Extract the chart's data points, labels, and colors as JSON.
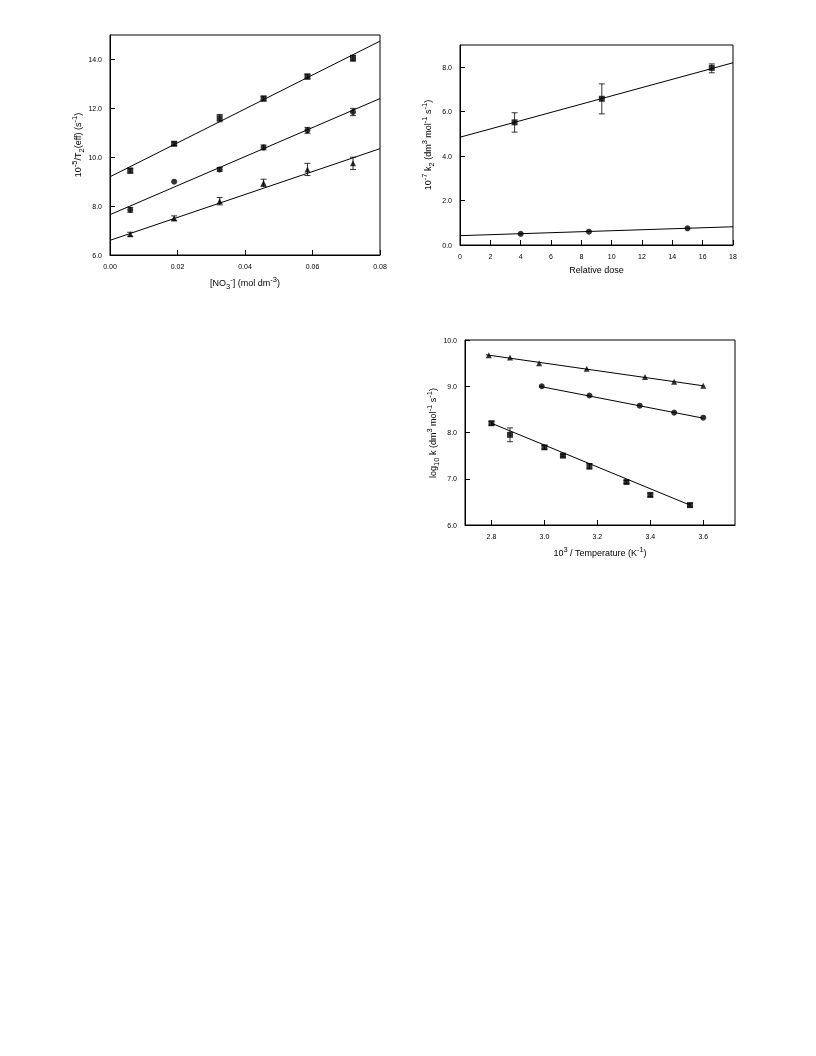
{
  "chart_data": [
    {
      "type": "scatter",
      "xlabel": "[NO$_{3}$$^{-}$] (mol dm$^{-3}$)",
      "ylabel": "10$^{-5}$/T$_{2}$(eff) (s$^{-1}$)",
      "xlim": [
        0,
        0.08
      ],
      "xticks": [
        {
          "value": 0,
          "label": "0.00"
        },
        {
          "value": 0.02,
          "label": "0.02"
        },
        {
          "value": 0.04,
          "label": "0.04"
        },
        {
          "value": 0.06,
          "label": "0.06"
        },
        {
          "value": 0.08,
          "label": "0.08"
        }
      ],
      "ylim": [
        6,
        15
      ],
      "yticks": [
        {
          "value": 6,
          "label": "6.0"
        },
        {
          "value": 8,
          "label": "8.0"
        },
        {
          "value": 10,
          "label": "10.0"
        },
        {
          "value": 12,
          "label": "12.0"
        },
        {
          "value": 14,
          "label": "14.0"
        }
      ],
      "grid": false,
      "series": [
        {
          "marker": "square",
          "color": "#000000",
          "x": [
            0.006,
            0.019,
            0.0325,
            0.0455,
            0.0585,
            0.072
          ],
          "values": [
            9.45,
            10.55,
            11.6,
            12.4,
            13.3,
            14.05
          ],
          "errors": [
            0.1,
            0.08,
            0.15,
            0.1,
            0.1,
            0.12
          ]
        },
        {
          "marker": "circle",
          "color": "#000000",
          "x": [
            0.006,
            0.019,
            0.0325,
            0.0455,
            0.0585,
            0.072
          ],
          "values": [
            7.85,
            9.0,
            9.5,
            10.4,
            11.1,
            11.85
          ],
          "errors": [
            0.1,
            null,
            0.08,
            0.1,
            0.12,
            0.15
          ]
        },
        {
          "marker": "triangle",
          "color": "#000000",
          "x": [
            0.006,
            0.019,
            0.0325,
            0.0455,
            0.0585,
            0.072
          ],
          "values": [
            6.85,
            7.5,
            8.2,
            8.95,
            9.5,
            9.75
          ],
          "errors": [
            0.08,
            0.1,
            0.15,
            0.15,
            0.25,
            0.25
          ]
        },
        {
          "type": "line",
          "marker": "none",
          "color": "#000000",
          "x": [
            0,
            0.08
          ],
          "values": [
            9.2,
            14.75
          ]
        },
        {
          "type": "line",
          "marker": "none",
          "color": "#000000",
          "x": [
            0,
            0.08
          ],
          "values": [
            7.65,
            12.4
          ]
        },
        {
          "type": "line",
          "marker": "none",
          "color": "#000000",
          "x": [
            0,
            0.08
          ],
          "values": [
            6.6,
            10.35
          ]
        }
      ]
    },
    {
      "type": "scatter",
      "xlabel": "Relative dose",
      "ylabel": "10$^{-7}$ k$_{2}$ (dm$^{3}$ mol$^{-1}$ s$^{-1}$)",
      "xlim": [
        0,
        18
      ],
      "xticks": [
        0,
        2,
        4,
        6,
        8,
        10,
        12,
        14,
        16,
        18
      ],
      "ylim": [
        0,
        9
      ],
      "yticks": [
        {
          "value": 0,
          "label": "0.0"
        },
        {
          "value": 2,
          "label": "2.0"
        },
        {
          "value": 4,
          "label": "4.0"
        },
        {
          "value": 6,
          "label": "6.0"
        },
        {
          "value": 8,
          "label": "8.0"
        }
      ],
      "grid": false,
      "series": [
        {
          "marker": "square",
          "color": "#000000",
          "x": [
            3.6,
            9.35,
            16.6
          ],
          "values": [
            5.52,
            6.58,
            7.97
          ],
          "errors": [
            [
              5.08,
              5.95
            ],
            [
              5.9,
              7.25
            ],
            [
              7.75,
              8.15
            ]
          ]
        },
        {
          "marker": "circle",
          "color": "#000000",
          "x": [
            4.0,
            8.5,
            15.0
          ],
          "values": [
            0.5,
            0.6,
            0.75
          ]
        },
        {
          "type": "line",
          "marker": "none",
          "color": "#000000",
          "x": [
            0,
            18
          ],
          "values": [
            4.85,
            8.2
          ]
        },
        {
          "type": "line",
          "marker": "none",
          "color": "#000000",
          "x": [
            0,
            18
          ],
          "values": [
            0.42,
            0.82
          ]
        }
      ]
    },
    {
      "type": "scatter",
      "xlabel": "10$^{3}$ / Temperature (K$^{-1}$)",
      "ylabel": "log$_{10}$ k (dm$^{3}$ mol$^{-1}$ s$^{-1}$)",
      "xlim": [
        2.7,
        3.72
      ],
      "xticks": [
        {
          "value": 2.8,
          "label": "2.8"
        },
        {
          "value": 3.0,
          "label": "3.0"
        },
        {
          "value": 3.2,
          "label": "3.2"
        },
        {
          "value": 3.4,
          "label": "3.4"
        },
        {
          "value": 3.6,
          "label": "3.6"
        }
      ],
      "ylim": [
        6,
        10
      ],
      "yticks": [
        {
          "value": 6,
          "label": "6.0"
        },
        {
          "value": 7,
          "label": "7.0"
        },
        {
          "value": 8,
          "label": "8.0"
        },
        {
          "value": 9,
          "label": "9.0"
        },
        {
          "value": 10,
          "label": "10.0"
        }
      ],
      "grid": false,
      "series": [
        {
          "marker": "triangle",
          "color": "#000000",
          "x": [
            2.79,
            2.87,
            2.98,
            3.16,
            3.38,
            3.49,
            3.6
          ],
          "values": [
            9.67,
            9.62,
            9.5,
            9.38,
            9.2,
            9.1,
            9.01
          ]
        },
        {
          "marker": "circle",
          "color": "#000000",
          "x": [
            2.99,
            3.17,
            3.36,
            3.49,
            3.6
          ],
          "values": [
            9.0,
            8.8,
            8.58,
            8.43,
            8.32
          ]
        },
        {
          "marker": "square",
          "color": "#000000",
          "x": [
            2.8,
            2.87,
            3.0,
            3.07,
            3.17,
            3.31,
            3.4,
            3.55
          ],
          "values": [
            8.2,
            7.95,
            7.68,
            7.5,
            7.27,
            6.93,
            6.65,
            6.43
          ],
          "errors": [
            0.04,
            0.15,
            0.04,
            0.03,
            0.06,
            0.03,
            0.04,
            0.04
          ]
        },
        {
          "type": "line",
          "marker": "none",
          "color": "#000000",
          "x": [
            2.78,
            3.6
          ],
          "values": [
            9.68,
            9.01
          ]
        },
        {
          "type": "line",
          "marker": "none",
          "color": "#000000",
          "x": [
            2.98,
            3.6
          ],
          "values": [
            9.0,
            8.31
          ]
        },
        {
          "type": "line",
          "marker": "none",
          "color": "#000000",
          "x": [
            2.8,
            3.55
          ],
          "values": [
            8.2,
            6.43
          ]
        }
      ]
    }
  ]
}
